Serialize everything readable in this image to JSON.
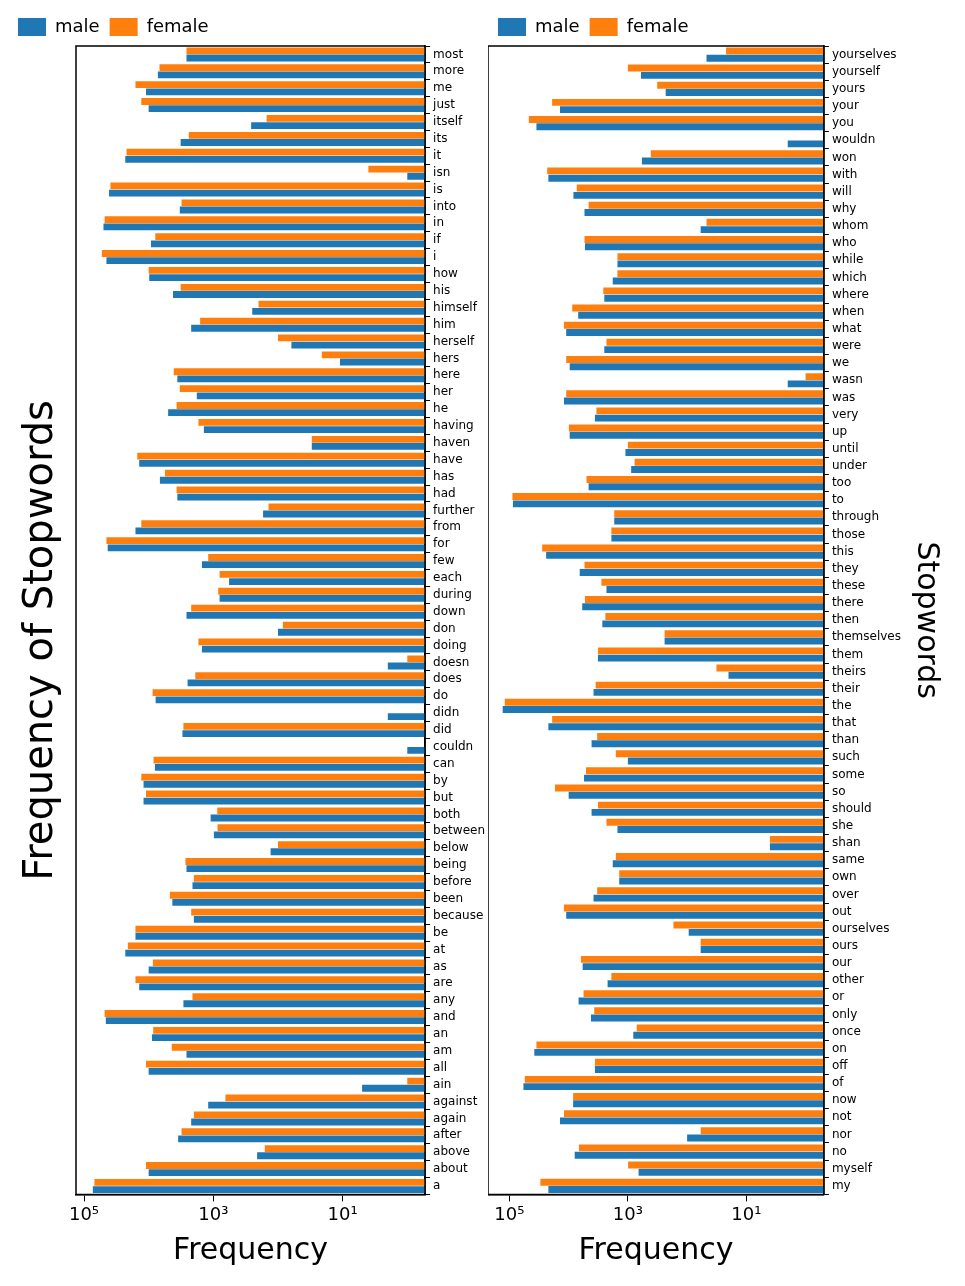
{
  "chart_data": [
    {
      "type": "bar",
      "orientation": "horizontal",
      "title": "Frequency of Stopwords",
      "xlabel": "Frequency",
      "categories": [
        "most",
        "more",
        "me",
        "just",
        "itself",
        "its",
        "it",
        "isn",
        "is",
        "into",
        "in",
        "if",
        "i",
        "how",
        "his",
        "himself",
        "him",
        "herself",
        "hers",
        "here",
        "her",
        "he",
        "having",
        "haven",
        "have",
        "has",
        "had",
        "further",
        "from",
        "for",
        "few",
        "each",
        "during",
        "down",
        "don",
        "doing",
        "doesn",
        "does",
        "do",
        "didn",
        "did",
        "couldn",
        "can",
        "by",
        "but",
        "both",
        "between",
        "below",
        "being",
        "before",
        "been",
        "because",
        "be",
        "at",
        "as",
        "are",
        "any",
        "and",
        "an",
        "am",
        "all",
        "ain",
        "against",
        "again",
        "after",
        "above",
        "about",
        "a"
      ],
      "series": [
        {
          "name": "male",
          "color": "#1f77b4",
          "values": [
            2600,
            7200,
            11000,
            10000,
            260,
            3200,
            23000,
            1,
            41000,
            3300,
            50000,
            9200,
            45000,
            9800,
            4200,
            250,
            2200,
            62,
            11,
            3600,
            1800,
            5000,
            1400,
            30,
            14000,
            6700,
            3600,
            170,
            16000,
            43000,
            1500,
            570,
            800,
            2600,
            100,
            1500,
            2,
            2500,
            7800,
            2,
            3000,
            1,
            8000,
            12000,
            12000,
            1100,
            980,
            130,
            2600,
            2100,
            4300,
            2000,
            16000,
            23000,
            10000,
            14000,
            2900,
            46000,
            8900,
            2600,
            10000,
            5,
            1200,
            2200,
            3500,
            210,
            10000,
            73000
          ]
        },
        {
          "name": "female",
          "color": "#ff7f0e",
          "values": [
            2600,
            6800,
            16000,
            13000,
            150,
            2400,
            22000,
            4,
            39000,
            3100,
            48000,
            7900,
            53000,
            10000,
            3200,
            200,
            1600,
            100,
            21,
            4100,
            3300,
            3700,
            1700,
            30,
            15000,
            5600,
            3700,
            140,
            13000,
            45000,
            1200,
            800,
            840,
            2200,
            84,
            1700,
            1,
            1900,
            8700,
            null,
            2900,
            null,
            8400,
            13000,
            11000,
            870,
            860,
            100,
            2700,
            2000,
            4700,
            2200,
            16000,
            21000,
            8600,
            16000,
            2100,
            48000,
            8500,
            4400,
            11000,
            1,
            650,
            2000,
            3100,
            160,
            11000,
            69000
          ]
        }
      ],
      "xlim": [
        133000,
        0.53
      ],
      "xticks": [
        {
          "value": 100000,
          "label": "10⁵"
        },
        {
          "value": 1000,
          "label": "10³"
        },
        {
          "value": 10,
          "label": "10¹"
        }
      ],
      "log": "x",
      "grid": false,
      "legend": "top left"
    },
    {
      "type": "bar",
      "orientation": "horizontal",
      "xlabel": "Frequency",
      "ylabel": "Stopwords",
      "categories": [
        "yourselves",
        "yourself",
        "yours",
        "your",
        "you",
        "wouldn",
        "won",
        "with",
        "will",
        "why",
        "whom",
        "who",
        "while",
        "which",
        "where",
        "when",
        "what",
        "were",
        "we",
        "wasn",
        "was",
        "very",
        "up",
        "until",
        "under",
        "too",
        "to",
        "through",
        "those",
        "this",
        "they",
        "these",
        "there",
        "then",
        "themselves",
        "them",
        "theirs",
        "their",
        "the",
        "that",
        "than",
        "such",
        "some",
        "so",
        "should",
        "she",
        "shan",
        "same",
        "own",
        "over",
        "out",
        "ourselves",
        "ours",
        "our",
        "other",
        "or",
        "only",
        "once",
        "on",
        "off",
        "of",
        "now",
        "not",
        "nor",
        "no",
        "myself",
        "my"
      ],
      "series": [
        {
          "name": "male",
          "color": "#1f77b4",
          "values": [
            47,
            600,
            230,
            14000,
            35000,
            2,
            580,
            22000,
            8300,
            5400,
            59,
            5300,
            1500,
            1800,
            2500,
            6900,
            11000,
            2500,
            9600,
            2,
            12000,
            3600,
            9600,
            1100,
            880,
            4600,
            87000,
            1700,
            1900,
            24000,
            6500,
            2300,
            5900,
            2700,
            240,
            3200,
            20,
            3800,
            130000,
            22000,
            4100,
            1000,
            5500,
            10000,
            4100,
            1500,
            4,
            1800,
            1400,
            3800,
            11000,
            94,
            59,
            5800,
            2200,
            6800,
            4200,
            810,
            38000,
            3600,
            58000,
            8400,
            14000,
            100,
            7900,
            660,
            22000
          ]
        },
        {
          "name": "female",
          "color": "#ff7f0e",
          "values": [
            22,
            1000,
            320,
            19000,
            47000,
            null,
            410,
            23000,
            7300,
            4600,
            47,
            5400,
            1500,
            1500,
            2600,
            8700,
            12000,
            2300,
            11000,
            1,
            11000,
            3400,
            9900,
            1000,
            770,
            5000,
            89000,
            1700,
            1900,
            28000,
            5400,
            2800,
            5300,
            2400,
            240,
            3200,
            32,
            3500,
            120000,
            19000,
            3300,
            1600,
            5100,
            17000,
            3200,
            2300,
            4,
            1600,
            1400,
            3300,
            12000,
            170,
            59,
            6200,
            1900,
            5600,
            3700,
            710,
            35000,
            3600,
            55000,
            8400,
            12000,
            59,
            6700,
            990,
            30000
          ]
        }
      ],
      "xlim": [
        230000,
        0.49
      ],
      "xticks": [
        {
          "value": 100000,
          "label": "10⁵"
        },
        {
          "value": 1000,
          "label": "10³"
        },
        {
          "value": 10,
          "label": "10¹"
        }
      ],
      "log": "x",
      "grid": false,
      "legend": "top left"
    }
  ]
}
